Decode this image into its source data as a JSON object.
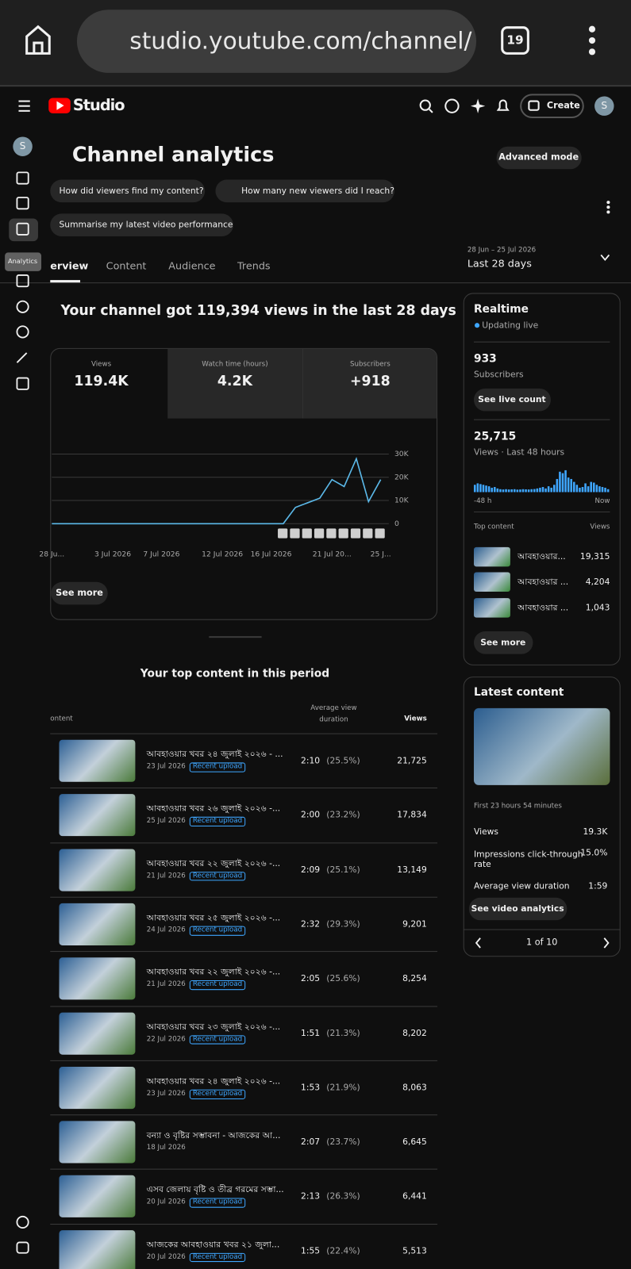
{
  "browser": {
    "url": "studio.youtube.com/channel/",
    "tabs": "19"
  },
  "header": {
    "logo": "Studio",
    "create": "Create",
    "avatar": "S"
  },
  "sidebar": {
    "avatar": "S",
    "tooltip": "Analytics"
  },
  "page": {
    "title": "Channel analytics",
    "advanced": "Advanced mode",
    "chips": [
      "How did viewers find my content?",
      "How many new viewers did I reach?",
      "Summarise my latest video performance"
    ],
    "tabs": [
      "erview",
      "Content",
      "Audience",
      "Trends"
    ],
    "date_range": "28 Jun – 25 Jul 2026",
    "period": "Last 28 days"
  },
  "overview": {
    "headline": "Your channel got 119,394 views in the last 28 days",
    "metrics": [
      {
        "label": "Views",
        "value": "119.4K"
      },
      {
        "label": "Watch time (hours)",
        "value": "4.2K"
      },
      {
        "label": "Subscribers",
        "value": "+918"
      }
    ],
    "see_more": "See more"
  },
  "chart": {
    "type": "line",
    "color": "#5bb8e8",
    "categories": [
      "28 Ju...",
      null,
      null,
      null,
      null,
      "3 Jul 2026",
      null,
      null,
      null,
      "7 Jul 2026",
      null,
      null,
      null,
      null,
      "12 Jul 2026",
      null,
      null,
      null,
      "16 Jul 2026",
      null,
      null,
      null,
      null,
      "21 Jul 20...",
      null,
      null,
      null,
      "25 J..."
    ],
    "values": [
      0,
      0,
      0,
      0,
      0,
      0,
      0,
      0,
      0,
      0,
      0,
      0,
      0,
      0,
      0,
      0,
      0,
      0,
      0,
      0,
      7000,
      9000,
      11000,
      19000,
      16000,
      28000,
      9500,
      19000
    ],
    "ylim": [
      0,
      30000
    ],
    "yticks": [
      0,
      {
        "value": 10000,
        "label": "10K"
      },
      {
        "value": 20000,
        "label": "20K"
      },
      {
        "value": 30000,
        "label": "30K"
      }
    ],
    "grid": true
  },
  "realtime": {
    "title": "Realtime",
    "status": "Updating live",
    "subs": "933",
    "subs_label": "Subscribers",
    "live_btn": "See live count",
    "views": "25,715",
    "views_label": "Views · Last 48 hours",
    "bars": [
      500,
      600,
      550,
      500,
      450,
      400,
      300,
      350,
      250,
      200,
      180,
      200,
      180,
      190,
      200,
      170,
      180,
      200,
      190,
      180,
      200,
      210,
      250,
      300,
      350,
      250,
      400,
      300,
      500,
      900,
      1400,
      1300,
      1500,
      1000,
      900,
      700,
      500,
      300,
      350,
      600,
      400,
      700,
      650,
      500,
      400,
      350,
      300,
      200
    ],
    "start": "-48 h",
    "end": "Now",
    "top_label": "Top content",
    "views_col": "Views",
    "items": [
      {
        "title": "আবহাওয়ার...",
        "views": "19,315"
      },
      {
        "title": "আবহাওয়ার ...",
        "views": "4,204"
      },
      {
        "title": "আবহাওয়ার ...",
        "views": "1,043"
      }
    ],
    "see_more": "See more"
  },
  "top": {
    "title": "Your top content in this period",
    "col_content": "ontent",
    "col_avd": "Average view duration",
    "col_views": "Views",
    "rows": [
      {
        "title": "আবহাওয়ার খবর ২৪ জুলাই ২০২৬ - ...",
        "date": "23 Jul 2026",
        "badge": "Recent upload",
        "avd": "2:10",
        "pct": "(25.5%)",
        "views": "21,725"
      },
      {
        "title": "আবহাওয়ার খবর ২৬ জুলাই ২০২৬ -...",
        "date": "25 Jul 2026",
        "badge": "Recent upload",
        "avd": "2:00",
        "pct": "(23.2%)",
        "views": "17,834"
      },
      {
        "title": "আবহাওয়ার খবর ২২ জুলাই ২০২৬ -...",
        "date": "21 Jul 2026",
        "badge": "Recent upload",
        "avd": "2:09",
        "pct": "(25.1%)",
        "views": "13,149"
      },
      {
        "title": "আবহাওয়ার খবর ২৫ জুলাই ২০২৬ -...",
        "date": "24 Jul 2026",
        "badge": "Recent upload",
        "avd": "2:32",
        "pct": "(29.3%)",
        "views": "9,201"
      },
      {
        "title": "আবহাওয়ার খবর ২২ জুলাই ২০২৬ -...",
        "date": "21 Jul 2026",
        "badge": "Recent upload",
        "avd": "2:05",
        "pct": "(25.6%)",
        "views": "8,254"
      },
      {
        "title": "আবহাওয়ার খবর ২৩ জুলাই ২০২৬ -...",
        "date": "22 Jul 2026",
        "badge": "Recent upload",
        "avd": "1:51",
        "pct": "(21.3%)",
        "views": "8,202"
      },
      {
        "title": "আবহাওয়ার খবর ২৪ জুলাই ২০২৬ -...",
        "date": "23 Jul 2026",
        "badge": "Recent upload",
        "avd": "1:53",
        "pct": "(21.9%)",
        "views": "8,063"
      },
      {
        "title": "বন্যা ও বৃষ্টির সম্ভাবনা - আজকের আ...",
        "date": "18 Jul 2026",
        "avd": "2:07",
        "pct": "(23.7%)",
        "views": "6,645"
      },
      {
        "title": "এসব জেলায় বৃষ্টি ও তীব্র গরমের সম্ভা...",
        "date": "20 Jul 2026",
        "badge": "Recent upload",
        "avd": "2:13",
        "pct": "(26.3%)",
        "views": "6,441"
      },
      {
        "title": "আজকের আবহাওয়ার খবর ২১ জুলা...",
        "date": "20 Jul 2026",
        "badge": "Recent upload",
        "avd": "1:55",
        "pct": "(22.4%)",
        "views": "5,513"
      }
    ]
  },
  "latest": {
    "title": "Latest content",
    "first": "First 23 hours 54 minutes",
    "stats": [
      {
        "label": "Views",
        "value": "19.3K"
      },
      {
        "label": "Impressions click-through rate",
        "value": "15.0%"
      },
      {
        "label": "Average view duration",
        "value": "1:59"
      }
    ],
    "button": "See video analytics",
    "pager": "1 of 10"
  }
}
